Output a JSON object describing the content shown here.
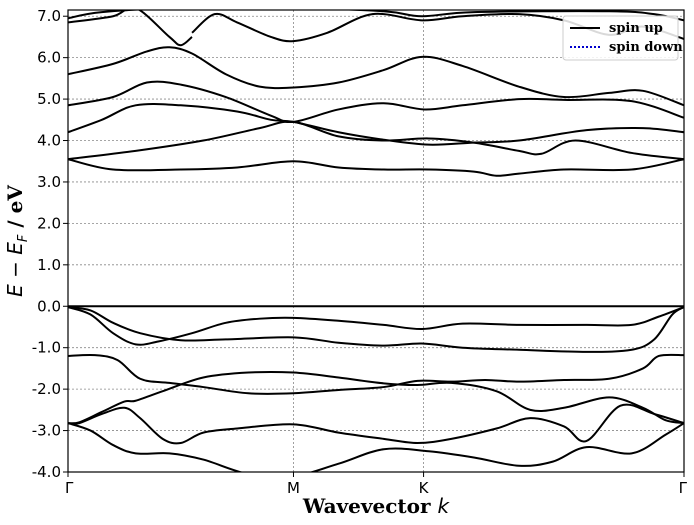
{
  "chart_data": {
    "type": "line",
    "xlabel": {
      "main": "Wavevector ",
      "var": "k"
    },
    "ylabel": {
      "lead": "E − E",
      "sub": "F",
      "tail": " / eV"
    },
    "x_ticks": [
      {
        "label": "Γ",
        "pos": 0.0
      },
      {
        "label": "M",
        "pos": 1.0
      },
      {
        "label": "K",
        "pos": 1.577
      },
      {
        "label": "Γ",
        "pos": 2.732
      }
    ],
    "y_ticks": [
      {
        "value": 7.0,
        "label": "7.0"
      },
      {
        "value": 6.0,
        "label": "6.0"
      },
      {
        "value": 5.0,
        "label": "5.0"
      },
      {
        "value": 4.0,
        "label": "4.0"
      },
      {
        "value": 3.0,
        "label": "3.0"
      },
      {
        "value": 2.0,
        "label": "2.0"
      },
      {
        "value": 1.0,
        "label": "1.0"
      },
      {
        "value": 0.0,
        "label": "0.0"
      },
      {
        "value": -1.0,
        "label": "-1.0"
      },
      {
        "value": -2.0,
        "label": "-2.0"
      },
      {
        "value": -3.0,
        "label": "-3.0"
      },
      {
        "value": -4.0,
        "label": "-4.0"
      }
    ],
    "xlim": [
      0.0,
      2.732
    ],
    "ylim": [
      -4.0,
      7.15
    ],
    "grid": true,
    "legend_placement": "top-right",
    "legend": [
      {
        "label": "spin up",
        "style": "solid",
        "color": "#000000"
      },
      {
        "label": "spin down",
        "style": "dotted",
        "color": "#0000cc"
      }
    ],
    "fermi_level": 0.0,
    "series": [
      {
        "spin": "up",
        "points": [
          [
            0,
            -2.82
          ],
          [
            0.05,
            -2.8
          ],
          [
            0.15,
            -2.55
          ],
          [
            0.25,
            -2.3
          ],
          [
            0.3,
            -2.28
          ],
          [
            0.42,
            -2.05
          ],
          [
            0.6,
            -1.72
          ],
          [
            0.8,
            -1.6
          ],
          [
            1.0,
            -1.6
          ],
          [
            1.2,
            -1.72
          ],
          [
            1.4,
            -1.86
          ],
          [
            1.55,
            -1.9
          ],
          [
            1.7,
            -1.85
          ],
          [
            1.9,
            -2.05
          ],
          [
            2.05,
            -2.5
          ],
          [
            2.2,
            -2.45
          ],
          [
            2.4,
            -2.2
          ],
          [
            2.55,
            -2.45
          ],
          [
            2.65,
            -2.75
          ],
          [
            2.732,
            -2.82
          ]
        ]
      },
      {
        "spin": "up",
        "points": [
          [
            0,
            -2.82
          ],
          [
            0.05,
            -2.82
          ],
          [
            0.15,
            -2.6
          ],
          [
            0.25,
            -2.45
          ],
          [
            0.32,
            -2.7
          ],
          [
            0.42,
            -3.2
          ],
          [
            0.5,
            -3.3
          ],
          [
            0.6,
            -3.05
          ],
          [
            0.75,
            -2.95
          ],
          [
            1.0,
            -2.85
          ],
          [
            1.2,
            -3.05
          ],
          [
            1.4,
            -3.2
          ],
          [
            1.55,
            -3.3
          ],
          [
            1.7,
            -3.2
          ],
          [
            1.9,
            -2.95
          ],
          [
            2.05,
            -2.7
          ],
          [
            2.2,
            -2.9
          ],
          [
            2.3,
            -3.25
          ],
          [
            2.45,
            -2.4
          ],
          [
            2.6,
            -2.6
          ],
          [
            2.732,
            -2.82
          ]
        ]
      },
      {
        "spin": "up",
        "points": [
          [
            0,
            -2.82
          ],
          [
            0.1,
            -3.0
          ],
          [
            0.2,
            -3.35
          ],
          [
            0.3,
            -3.55
          ],
          [
            0.45,
            -3.55
          ],
          [
            0.6,
            -3.7
          ],
          [
            0.8,
            -4.05
          ],
          [
            1.0,
            -4.1
          ],
          [
            1.2,
            -3.8
          ],
          [
            1.4,
            -3.45
          ],
          [
            1.6,
            -3.5
          ],
          [
            1.8,
            -3.65
          ],
          [
            2.0,
            -3.85
          ],
          [
            2.15,
            -3.75
          ],
          [
            2.3,
            -3.4
          ],
          [
            2.5,
            -3.55
          ],
          [
            2.65,
            -3.1
          ],
          [
            2.732,
            -2.82
          ]
        ]
      },
      {
        "spin": "up",
        "points": [
          [
            0,
            -1.2
          ],
          [
            0.12,
            -1.18
          ],
          [
            0.22,
            -1.3
          ],
          [
            0.32,
            -1.75
          ],
          [
            0.45,
            -1.85
          ],
          [
            0.6,
            -1.95
          ],
          [
            0.8,
            -2.1
          ],
          [
            1.0,
            -2.1
          ],
          [
            1.2,
            -2.02
          ],
          [
            1.4,
            -1.95
          ],
          [
            1.55,
            -1.8
          ],
          [
            1.7,
            -1.82
          ],
          [
            1.85,
            -1.78
          ],
          [
            2.0,
            -1.82
          ],
          [
            2.2,
            -1.78
          ],
          [
            2.4,
            -1.75
          ],
          [
            2.55,
            -1.5
          ],
          [
            2.62,
            -1.2
          ],
          [
            2.732,
            -1.18
          ]
        ]
      },
      {
        "spin": "up",
        "points": [
          [
            0,
            -0.02
          ],
          [
            0.1,
            -0.1
          ],
          [
            0.2,
            -0.4
          ],
          [
            0.32,
            -0.65
          ],
          [
            0.5,
            -0.82
          ],
          [
            0.7,
            -0.8
          ],
          [
            1.0,
            -0.75
          ],
          [
            1.2,
            -0.88
          ],
          [
            1.4,
            -0.95
          ],
          [
            1.57,
            -0.9
          ],
          [
            1.75,
            -1.0
          ],
          [
            2.0,
            -1.05
          ],
          [
            2.3,
            -1.1
          ],
          [
            2.5,
            -1.05
          ],
          [
            2.6,
            -0.8
          ],
          [
            2.68,
            -0.2
          ],
          [
            2.732,
            -0.02
          ]
        ]
      },
      {
        "spin": "up",
        "points": [
          [
            0,
            -0.02
          ],
          [
            0.1,
            -0.2
          ],
          [
            0.2,
            -0.65
          ],
          [
            0.3,
            -0.92
          ],
          [
            0.4,
            -0.85
          ],
          [
            0.55,
            -0.65
          ],
          [
            0.7,
            -0.4
          ],
          [
            0.85,
            -0.3
          ],
          [
            1.0,
            -0.28
          ],
          [
            1.2,
            -0.35
          ],
          [
            1.4,
            -0.45
          ],
          [
            1.57,
            -0.55
          ],
          [
            1.75,
            -0.42
          ],
          [
            2.0,
            -0.45
          ],
          [
            2.3,
            -0.45
          ],
          [
            2.5,
            -0.45
          ],
          [
            2.62,
            -0.25
          ],
          [
            2.732,
            -0.02
          ]
        ]
      },
      {
        "spin": "up",
        "points": [
          [
            0,
            3.55
          ],
          [
            0.2,
            3.3
          ],
          [
            0.5,
            3.3
          ],
          [
            0.75,
            3.35
          ],
          [
            1.0,
            3.5
          ],
          [
            1.2,
            3.35
          ],
          [
            1.4,
            3.3
          ],
          [
            1.6,
            3.3
          ],
          [
            1.8,
            3.25
          ],
          [
            1.9,
            3.15
          ],
          [
            2.0,
            3.2
          ],
          [
            2.2,
            3.3
          ],
          [
            2.5,
            3.3
          ],
          [
            2.732,
            3.55
          ]
        ]
      },
      {
        "spin": "up",
        "points": [
          [
            0,
            3.55
          ],
          [
            0.3,
            3.75
          ],
          [
            0.6,
            4.0
          ],
          [
            0.85,
            4.3
          ],
          [
            1.0,
            4.45
          ],
          [
            1.2,
            4.1
          ],
          [
            1.4,
            4.0
          ],
          [
            1.6,
            4.05
          ],
          [
            1.8,
            3.95
          ],
          [
            2.0,
            3.75
          ],
          [
            2.1,
            3.68
          ],
          [
            2.25,
            4.0
          ],
          [
            2.5,
            3.7
          ],
          [
            2.732,
            3.55
          ]
        ]
      },
      {
        "spin": "up",
        "points": [
          [
            0,
            4.2
          ],
          [
            0.15,
            4.5
          ],
          [
            0.3,
            4.85
          ],
          [
            0.5,
            4.85
          ],
          [
            0.75,
            4.7
          ],
          [
            0.9,
            4.5
          ],
          [
            1.0,
            4.45
          ],
          [
            1.2,
            4.2
          ],
          [
            1.4,
            4.02
          ],
          [
            1.6,
            3.9
          ],
          [
            1.8,
            3.95
          ],
          [
            2.0,
            4.0
          ],
          [
            2.3,
            4.25
          ],
          [
            2.55,
            4.3
          ],
          [
            2.732,
            4.2
          ]
        ]
      },
      {
        "spin": "up",
        "points": [
          [
            0,
            4.85
          ],
          [
            0.2,
            5.05
          ],
          [
            0.35,
            5.4
          ],
          [
            0.5,
            5.35
          ],
          [
            0.7,
            5.05
          ],
          [
            0.9,
            4.6
          ],
          [
            1.0,
            4.45
          ],
          [
            1.2,
            4.75
          ],
          [
            1.4,
            4.9
          ],
          [
            1.58,
            4.75
          ],
          [
            1.75,
            4.85
          ],
          [
            2.0,
            5.0
          ],
          [
            2.2,
            4.98
          ],
          [
            2.5,
            4.95
          ],
          [
            2.732,
            4.55
          ]
        ]
      },
      {
        "spin": "up",
        "points": [
          [
            0,
            5.6
          ],
          [
            0.2,
            5.85
          ],
          [
            0.35,
            6.15
          ],
          [
            0.45,
            6.25
          ],
          [
            0.55,
            6.1
          ],
          [
            0.7,
            5.6
          ],
          [
            0.85,
            5.3
          ],
          [
            1.0,
            5.28
          ],
          [
            1.2,
            5.4
          ],
          [
            1.4,
            5.7
          ],
          [
            1.57,
            6.02
          ],
          [
            1.75,
            5.8
          ],
          [
            2.0,
            5.3
          ],
          [
            2.2,
            5.05
          ],
          [
            2.4,
            5.15
          ],
          [
            2.55,
            5.2
          ],
          [
            2.732,
            4.85
          ]
        ]
      },
      {
        "spin": "up",
        "points": [
          [
            0,
            6.85
          ],
          [
            0.2,
            7.0
          ],
          [
            0.3,
            7.2
          ],
          [
            0.45,
            6.5
          ],
          [
            0.5,
            6.3
          ],
          [
            0.55,
            6.5
          ]
        ]
      },
      {
        "spin": "up",
        "points": [
          [
            0.55,
            6.6
          ],
          [
            0.65,
            7.05
          ],
          [
            0.75,
            6.85
          ],
          [
            0.9,
            6.5
          ],
          [
            1.0,
            6.4
          ],
          [
            1.15,
            6.6
          ],
          [
            1.35,
            7.05
          ],
          [
            1.57,
            6.9
          ],
          [
            1.75,
            7.0
          ],
          [
            2.0,
            7.05
          ],
          [
            2.2,
            6.9
          ],
          [
            2.4,
            6.55
          ],
          [
            2.55,
            6.75
          ],
          [
            2.732,
            6.45
          ]
        ]
      },
      {
        "spin": "up",
        "points": [
          [
            0,
            6.95
          ],
          [
            0.15,
            7.1
          ],
          [
            0.5,
            7.2
          ],
          [
            1.0,
            7.2
          ],
          [
            1.4,
            7.12
          ],
          [
            1.57,
            7.0
          ],
          [
            1.8,
            7.1
          ],
          [
            2.4,
            7.12
          ],
          [
            2.6,
            7.05
          ],
          [
            2.732,
            6.9
          ]
        ]
      }
    ]
  }
}
